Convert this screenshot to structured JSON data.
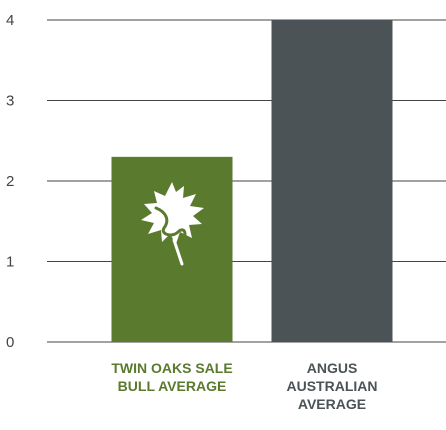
{
  "chart_data": {
    "type": "bar",
    "categories": [
      [
        "TWIN OAKS SALE",
        "BULL AVERAGE"
      ],
      [
        "ANGUS",
        "AUSTRALIAN",
        "AVERAGE"
      ]
    ],
    "values": [
      2.3,
      4.0
    ],
    "ylim": [
      0,
      4
    ],
    "yticks": [
      0,
      1,
      2,
      3,
      4
    ],
    "grid": true,
    "bar_colors": [
      "#5a7a2e",
      "#4b5356"
    ],
    "label_colors": [
      "#5a7a2e",
      "#4b5356"
    ],
    "axis_color": "#444444",
    "bar_icon": "oak-leaf-icon",
    "icon_color": "#ffffff"
  }
}
